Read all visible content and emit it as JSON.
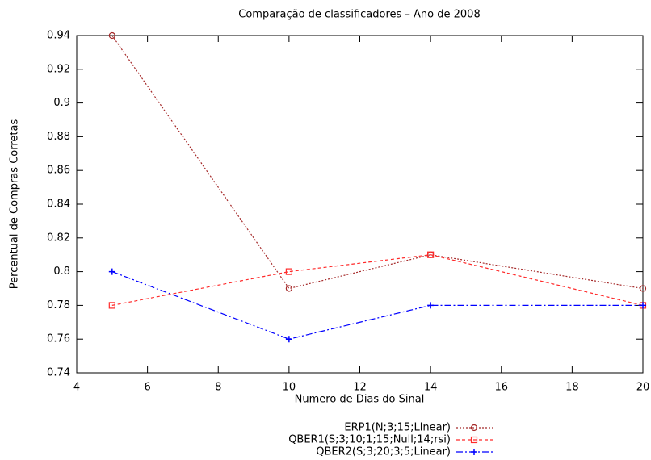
{
  "chart_data": {
    "type": "line",
    "title": "Comparação de classificadores – Ano de 2008",
    "x_label": "Numero de Dias do Sinal",
    "y_label": "Percentual de Compras Corretas",
    "x": [
      5,
      10,
      14,
      20
    ],
    "series": [
      {
        "name": "ERP1(N;3;15;Linear)",
        "color": "#a52a2a",
        "dash": "dotted",
        "marker": "circle",
        "values": [
          0.94,
          0.79,
          0.81,
          0.79
        ]
      },
      {
        "name": "QBER1(S;3;10;1;15;Null;14;rsi)",
        "color": "#ff2a2a",
        "dash": "dashed",
        "marker": "square",
        "values": [
          0.78,
          0.8,
          0.81,
          0.78
        ]
      },
      {
        "name": "QBER2(S;3;20;3;5;Linear)",
        "color": "#0000ff",
        "dash": "dashdot",
        "marker": "plus",
        "values": [
          0.8,
          0.76,
          0.78,
          0.78
        ]
      }
    ],
    "xlim": [
      4,
      20
    ],
    "xticks": [
      4,
      6,
      8,
      10,
      12,
      14,
      16,
      18,
      20
    ],
    "ylim": [
      0.74,
      0.94
    ],
    "yticks": [
      0.74,
      0.76,
      0.78,
      0.8,
      0.82,
      0.84,
      0.86,
      0.88,
      0.9,
      0.92,
      0.94
    ],
    "grid": false,
    "legend": "bottom"
  }
}
